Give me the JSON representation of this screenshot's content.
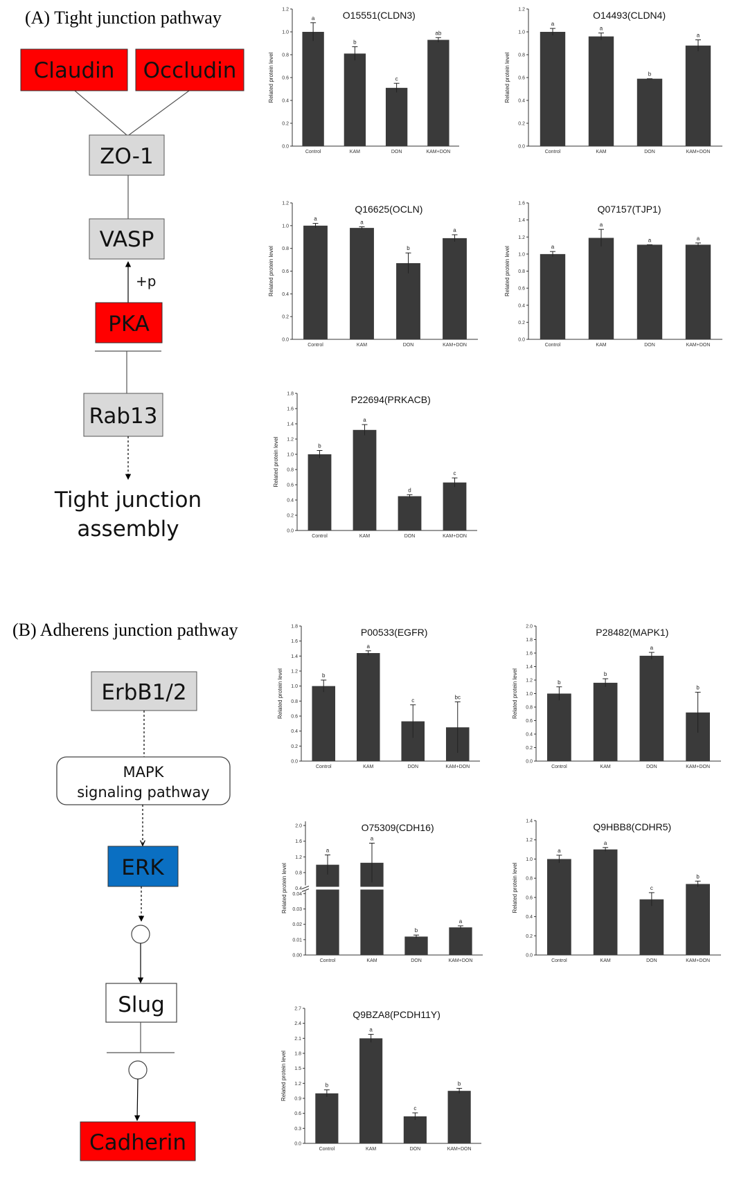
{
  "colors": {
    "red": "#ff0000",
    "gray_box": "#d9d9d9",
    "blue": "#0a6fc2",
    "bar": "#3a3a3a"
  },
  "panel_a": {
    "title": "(A) Tight junction pathway",
    "nodes": {
      "claudin": "Claudin",
      "occludin": "Occludin",
      "zo1": "ZO-1",
      "vasp": "VASP",
      "plus_p": "+p",
      "pka": "PKA",
      "rab13": "Rab13",
      "outcome_line1": "Tight junction",
      "outcome_line2": "assembly"
    }
  },
  "panel_b": {
    "title": "(B) Adherens junction pathway",
    "nodes": {
      "erbb": "ErbB1/2",
      "mapk_line1": "MAPK",
      "mapk_line2": "signaling pathway",
      "erk": "ERK",
      "slug": "Slug",
      "cadherin": "Cadherin"
    }
  },
  "chart_data": [
    {
      "type": "bar",
      "title": "O15551(CLDN3)",
      "ylabel": "Related protein level",
      "categories": [
        "Control",
        "KAM",
        "DON",
        "KAM+DON"
      ],
      "values": [
        1.0,
        0.81,
        0.51,
        0.93
      ],
      "errors": [
        0.08,
        0.06,
        0.04,
        0.02
      ],
      "letters": [
        "a",
        "b",
        "c",
        "ab"
      ],
      "ylim": [
        0,
        1.2
      ],
      "yticks": [
        "0.0",
        "0.2",
        "0.4",
        "0.6",
        "0.8",
        "1.0",
        "1.2"
      ]
    },
    {
      "type": "bar",
      "title": "O14493(CLDN4)",
      "ylabel": "Related protein level",
      "categories": [
        "Control",
        "KAM",
        "DON",
        "KAM+DON"
      ],
      "values": [
        1.0,
        0.96,
        0.59,
        0.88
      ],
      "errors": [
        0.03,
        0.03,
        0.0,
        0.05
      ],
      "letters": [
        "a",
        "a",
        "b",
        "a"
      ],
      "ylim": [
        0,
        1.2
      ],
      "yticks": [
        "0.0",
        "0.2",
        "0.4",
        "0.6",
        "0.8",
        "1.0",
        "1.2"
      ]
    },
    {
      "type": "bar",
      "title": "Q16625(OCLN)",
      "ylabel": "Related protein level",
      "categories": [
        "Control",
        "KAM",
        "DON",
        "KAM+DON"
      ],
      "values": [
        1.0,
        0.98,
        0.67,
        0.89
      ],
      "errors": [
        0.02,
        0.01,
        0.09,
        0.03
      ],
      "letters": [
        "a",
        "a",
        "b",
        "a"
      ],
      "ylim": [
        0,
        1.2
      ],
      "yticks": [
        "0.0",
        "0.2",
        "0.4",
        "0.6",
        "0.8",
        "1.0",
        "1.2"
      ]
    },
    {
      "type": "bar",
      "title": "Q07157(TJP1)",
      "ylabel": "Related protein level",
      "categories": [
        "Control",
        "KAM",
        "DON",
        "KAM+DON"
      ],
      "values": [
        1.0,
        1.19,
        1.11,
        1.11
      ],
      "errors": [
        0.03,
        0.1,
        0.0,
        0.02
      ],
      "letters": [
        "a",
        "a",
        "a",
        "a"
      ],
      "ylim": [
        0,
        1.6
      ],
      "yticks": [
        "0.0",
        "0.2",
        "0.4",
        "0.6",
        "0.8",
        "1.0",
        "1.2",
        "1.4",
        "1.6"
      ]
    },
    {
      "type": "bar",
      "title": "P22694(PRKACB)",
      "ylabel": "Related protein level",
      "categories": [
        "Control",
        "KAM",
        "DON",
        "KAM+DON"
      ],
      "values": [
        1.0,
        1.32,
        0.45,
        0.63
      ],
      "errors": [
        0.05,
        0.07,
        0.02,
        0.06
      ],
      "letters": [
        "b",
        "a",
        "d",
        "c"
      ],
      "ylim": [
        0,
        1.8
      ],
      "yticks": [
        "0.0",
        "0.2",
        "0.4",
        "0.6",
        "0.8",
        "1.0",
        "1.2",
        "1.4",
        "1.6",
        "1.8"
      ]
    },
    {
      "type": "bar",
      "title": "P00533(EGFR)",
      "ylabel": "Related protein level",
      "categories": [
        "Control",
        "KAM",
        "DON",
        "KAM+DON"
      ],
      "values": [
        1.0,
        1.44,
        0.53,
        0.45
      ],
      "errors": [
        0.08,
        0.03,
        0.22,
        0.34
      ],
      "letters": [
        "b",
        "a",
        "c",
        "bc"
      ],
      "ylim": [
        0,
        1.8
      ],
      "yticks": [
        "0.0",
        "0.2",
        "0.4",
        "0.6",
        "0.8",
        "1.0",
        "1.2",
        "1.4",
        "1.6",
        "1.8"
      ]
    },
    {
      "type": "bar",
      "title": "P28482(MAPK1)",
      "ylabel": "Related protein level",
      "categories": [
        "Control",
        "KAM",
        "DON",
        "KAM+DON"
      ],
      "values": [
        1.0,
        1.16,
        1.56,
        0.72
      ],
      "errors": [
        0.1,
        0.06,
        0.05,
        0.3
      ],
      "letters": [
        "b",
        "b",
        "a",
        "b"
      ],
      "ylim": [
        0,
        2.0
      ],
      "yticks": [
        "0.0",
        "0.2",
        "0.4",
        "0.6",
        "0.8",
        "1.0",
        "1.2",
        "1.4",
        "1.6",
        "1.8",
        "2.0"
      ]
    },
    {
      "type": "bar",
      "title": "O75309(CDH16)",
      "ylabel": "Related protein level",
      "categories": [
        "Control",
        "KAM",
        "DON",
        "KAM+DON"
      ],
      "values": [
        1.0,
        1.05,
        0.012,
        0.018
      ],
      "errors": [
        0.25,
        0.5,
        0.001,
        0.001
      ],
      "letters": [
        "a",
        "a",
        "b",
        "a"
      ],
      "axis_break": true,
      "yticks_lower": [
        "0.00",
        "0.01",
        "0.02",
        "0.03",
        "0.04"
      ],
      "yticks_upper": [
        "0.4",
        "0.8",
        "1.2",
        "1.6",
        "2.0"
      ]
    },
    {
      "type": "bar",
      "title": "Q9HBB8(CDHR5)",
      "ylabel": "Related protein level",
      "categories": [
        "Control",
        "KAM",
        "DON",
        "KAM+DON"
      ],
      "values": [
        1.0,
        1.1,
        0.58,
        0.74
      ],
      "errors": [
        0.04,
        0.02,
        0.07,
        0.03
      ],
      "letters": [
        "a",
        "a",
        "c",
        "b"
      ],
      "ylim": [
        0,
        1.4
      ],
      "yticks": [
        "0.0",
        "0.2",
        "0.4",
        "0.6",
        "0.8",
        "1.0",
        "1.2",
        "1.4"
      ]
    },
    {
      "type": "bar",
      "title": "Q9BZA8(PCDH11Y)",
      "ylabel": "Related protein level",
      "categories": [
        "Control",
        "KAM",
        "DON",
        "KAM+DON"
      ],
      "values": [
        1.0,
        2.1,
        0.54,
        1.05
      ],
      "errors": [
        0.07,
        0.08,
        0.07,
        0.05
      ],
      "letters": [
        "b",
        "a",
        "c",
        "b"
      ],
      "ylim": [
        0,
        2.7
      ],
      "yticks": [
        "0.0",
        "0.3",
        "0.6",
        "0.9",
        "1.2",
        "1.5",
        "1.8",
        "2.1",
        "2.4",
        "2.7"
      ]
    }
  ]
}
